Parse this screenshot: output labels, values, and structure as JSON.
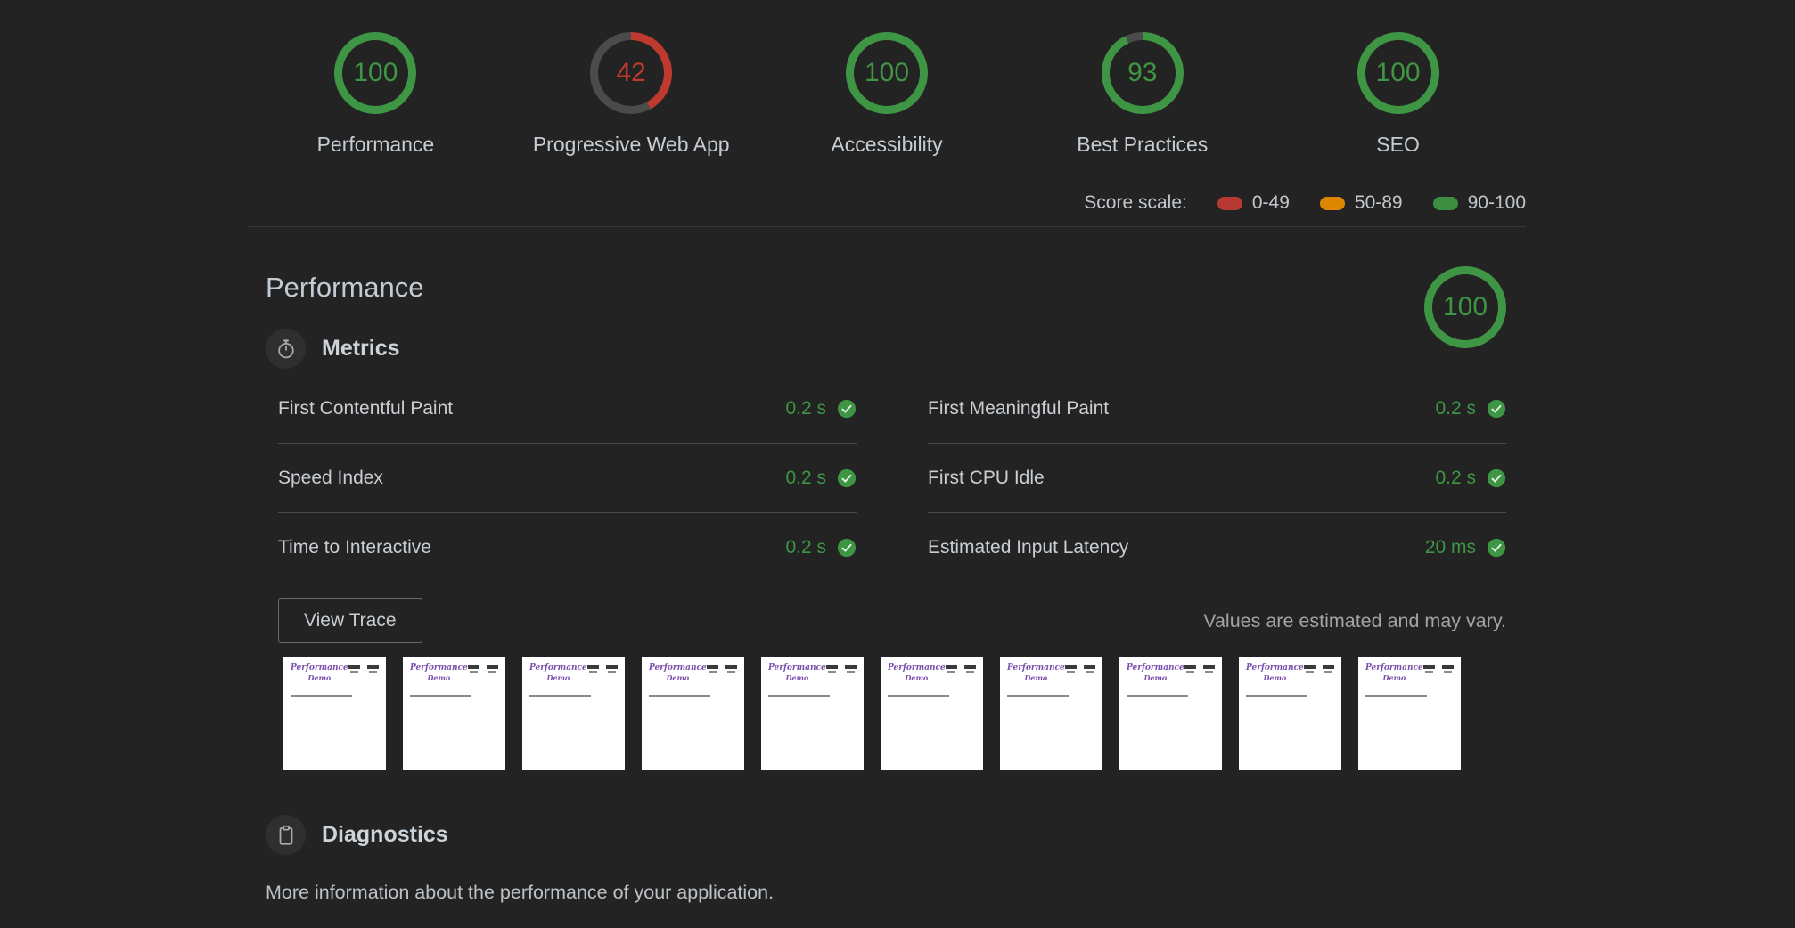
{
  "scores_header": {
    "categories": [
      {
        "label": "Performance",
        "score": "100"
      },
      {
        "label": "Progressive Web App",
        "score": "42"
      },
      {
        "label": "Accessibility",
        "score": "100"
      },
      {
        "label": "Best Practices",
        "score": "93"
      },
      {
        "label": "SEO",
        "score": "100"
      }
    ],
    "score_scale": {
      "label": "Score scale:",
      "ranges": [
        {
          "label": "0-49",
          "color": "#b63a32"
        },
        {
          "label": "50-89",
          "color": "#dd8600"
        },
        {
          "label": "90-100",
          "color": "#3d8e41"
        }
      ]
    }
  },
  "performance_section": {
    "title": "Performance",
    "score": "100",
    "metrics_header": "Metrics",
    "metrics_left": [
      {
        "name": "First Contentful Paint",
        "value": "0.2 s"
      },
      {
        "name": "Speed Index",
        "value": "0.2 s"
      },
      {
        "name": "Time to Interactive",
        "value": "0.2 s"
      }
    ],
    "metrics_right": [
      {
        "name": "First Meaningful Paint",
        "value": "0.2 s"
      },
      {
        "name": "First CPU Idle",
        "value": "0.2 s"
      },
      {
        "name": "Estimated Input Latency",
        "value": "20 ms"
      }
    ],
    "view_trace_label": "View Trace",
    "estimate_note": "Values are estimated and may vary.",
    "filmstrip_count": 10,
    "filmstrip_page_title": "Performance",
    "filmstrip_page_subtitle": "Demo"
  },
  "diagnostics_section": {
    "title": "Diagnostics",
    "description": "More information about the performance of your application."
  },
  "colors": {
    "pass_green": "#3e9544",
    "fail_red": "#bf3a2e",
    "average_orange": "#dd8600",
    "gauge_track": "#4b4b4b",
    "background": "#232323"
  }
}
